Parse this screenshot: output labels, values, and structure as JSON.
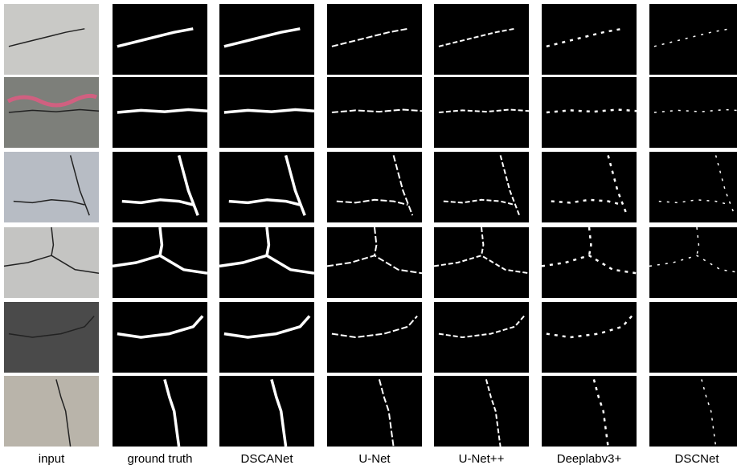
{
  "columns": [
    "input",
    "ground truth",
    "DSCANet",
    "U-Net",
    "U-Net++",
    "Deeplabv3+",
    "DSCNet"
  ]
}
